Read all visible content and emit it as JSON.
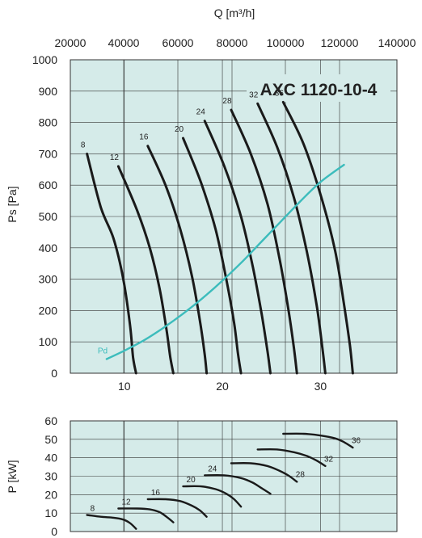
{
  "chart_data": [
    {
      "type": "line",
      "title": "AXC 1120-10-4",
      "top_axis": {
        "label": "Q [m³/h]",
        "ticks": [
          20000,
          40000,
          60000,
          80000,
          100000,
          120000,
          140000
        ],
        "tick_labels": [
          "20000",
          "40000",
          "60000",
          "80000",
          "100000",
          "120000",
          "140000"
        ]
      },
      "bottom_axis": {
        "label": "",
        "ticks": [
          10,
          20,
          30
        ],
        "tick_labels": [
          "10",
          "20",
          "30"
        ],
        "range": [
          4.5,
          37.8
        ]
      },
      "ylabel": "Ps [Pa]",
      "ylim": [
        0,
        1000
      ],
      "y_ticks": [
        0,
        100,
        200,
        300,
        400,
        500,
        600,
        700,
        800,
        900,
        1000
      ],
      "y_tick_labels": [
        "0",
        "100",
        "200",
        "300",
        "400",
        "500",
        "600",
        "700",
        "800",
        "900",
        "1000"
      ],
      "grid": true,
      "background": "#d5ebe9",
      "series": [
        {
          "name": "8",
          "color": "#1a1a1a",
          "points": [
            [
              6.2,
              700
            ],
            [
              7.6,
              530
            ],
            [
              8.9,
              430
            ],
            [
              9.9,
              300
            ],
            [
              10.6,
              150
            ],
            [
              10.9,
              50
            ],
            [
              11.2,
              0
            ]
          ]
        },
        {
          "name": "12",
          "color": "#1a1a1a",
          "points": [
            [
              9.4,
              660
            ],
            [
              11.3,
              520
            ],
            [
              12.6,
              400
            ],
            [
              13.6,
              270
            ],
            [
              14.3,
              140
            ],
            [
              14.7,
              50
            ],
            [
              15.0,
              0
            ]
          ]
        },
        {
          "name": "16",
          "color": "#1a1a1a",
          "points": [
            [
              12.4,
              725
            ],
            [
              14.2,
              600
            ],
            [
              15.7,
              460
            ],
            [
              16.9,
              310
            ],
            [
              17.7,
              170
            ],
            [
              18.2,
              60
            ],
            [
              18.4,
              0
            ]
          ]
        },
        {
          "name": "20",
          "color": "#1a1a1a",
          "points": [
            [
              16.0,
              750
            ],
            [
              17.8,
              610
            ],
            [
              19.3,
              460
            ],
            [
              20.4,
              300
            ],
            [
              21.2,
              160
            ],
            [
              21.6,
              60
            ],
            [
              21.9,
              0
            ]
          ]
        },
        {
          "name": "24",
          "color": "#1a1a1a",
          "points": [
            [
              18.2,
              805
            ],
            [
              20.2,
              660
            ],
            [
              21.9,
              500
            ],
            [
              23.1,
              340
            ],
            [
              24.0,
              190
            ],
            [
              24.6,
              70
            ],
            [
              24.9,
              0
            ]
          ]
        },
        {
          "name": "28",
          "color": "#1a1a1a",
          "points": [
            [
              20.9,
              840
            ],
            [
              22.9,
              700
            ],
            [
              24.6,
              540
            ],
            [
              25.8,
              370
            ],
            [
              26.7,
              210
            ],
            [
              27.3,
              80
            ],
            [
              27.6,
              0
            ]
          ]
        },
        {
          "name": "32",
          "color": "#1a1a1a",
          "points": [
            [
              23.6,
              860
            ],
            [
              25.6,
              720
            ],
            [
              27.3,
              560
            ],
            [
              28.6,
              390
            ],
            [
              29.6,
              220
            ],
            [
              30.2,
              80
            ],
            [
              30.5,
              0
            ]
          ]
        },
        {
          "name": "36",
          "color": "#1a1a1a",
          "points": [
            [
              26.2,
              865
            ],
            [
              28.3,
              730
            ],
            [
              30.1,
              560
            ],
            [
              31.5,
              390
            ],
            [
              32.4,
              220
            ],
            [
              33.0,
              90
            ],
            [
              33.3,
              0
            ]
          ]
        },
        {
          "name": "Pd",
          "color": "#3cbcbc",
          "points": [
            [
              8.2,
              45
            ],
            [
              10.2,
              75
            ],
            [
              12.0,
              105
            ],
            [
              14.0,
              145
            ],
            [
              16.0,
              190
            ],
            [
              18.0,
              240
            ],
            [
              20.0,
              295
            ],
            [
              22.0,
              355
            ],
            [
              24.0,
              420
            ],
            [
              26.0,
              485
            ],
            [
              28.0,
              550
            ],
            [
              30.0,
              610
            ],
            [
              32.4,
              665
            ]
          ]
        }
      ]
    },
    {
      "type": "line",
      "title": "",
      "xlabel": "",
      "ylabel": "P [kW]",
      "ylim": [
        0,
        60
      ],
      "y_ticks": [
        0,
        10,
        20,
        30,
        40,
        50,
        60
      ],
      "y_tick_labels": [
        "0",
        "10",
        "20",
        "30",
        "40",
        "50",
        "60"
      ],
      "xlim": [
        4.5,
        37.8
      ],
      "grid": true,
      "background": "#d5ebe9",
      "series": [
        {
          "name": "8",
          "color": "#1a1a1a",
          "points": [
            [
              6.2,
              9
            ],
            [
              7.6,
              8
            ],
            [
              8.9,
              7.5
            ],
            [
              9.9,
              6.5
            ],
            [
              10.6,
              4.5
            ],
            [
              11.2,
              1.5
            ]
          ]
        },
        {
          "name": "12",
          "color": "#1a1a1a",
          "points": [
            [
              9.4,
              12.5
            ],
            [
              11.3,
              12.5
            ],
            [
              12.6,
              12
            ],
            [
              13.6,
              10.5
            ],
            [
              14.3,
              8
            ],
            [
              15.0,
              5
            ]
          ]
        },
        {
          "name": "16",
          "color": "#1a1a1a",
          "points": [
            [
              12.4,
              17.5
            ],
            [
              14.2,
              17.5
            ],
            [
              15.7,
              16.5
            ],
            [
              16.9,
              14
            ],
            [
              17.7,
              11.5
            ],
            [
              18.4,
              8
            ]
          ]
        },
        {
          "name": "20",
          "color": "#1a1a1a",
          "points": [
            [
              16.0,
              24.5
            ],
            [
              17.8,
              24.5
            ],
            [
              19.3,
              23
            ],
            [
              20.4,
              20.5
            ],
            [
              21.2,
              17.5
            ],
            [
              21.9,
              13.5
            ]
          ]
        },
        {
          "name": "24",
          "color": "#1a1a1a",
          "points": [
            [
              18.2,
              30.5
            ],
            [
              20.2,
              30.5
            ],
            [
              21.9,
              29
            ],
            [
              23.1,
              26.5
            ],
            [
              24.0,
              23.5
            ],
            [
              24.9,
              20.5
            ]
          ]
        },
        {
          "name": "28",
          "color": "#1a1a1a",
          "points": [
            [
              20.9,
              37
            ],
            [
              22.9,
              37
            ],
            [
              24.6,
              35.5
            ],
            [
              25.8,
              33
            ],
            [
              26.7,
              30.5
            ],
            [
              27.6,
              27
            ]
          ]
        },
        {
          "name": "32",
          "color": "#1a1a1a",
          "points": [
            [
              23.6,
              44.5
            ],
            [
              25.6,
              44.5
            ],
            [
              27.3,
              43
            ],
            [
              28.6,
              41
            ],
            [
              29.6,
              38.5
            ],
            [
              30.5,
              35.5
            ]
          ]
        },
        {
          "name": "36",
          "color": "#1a1a1a",
          "points": [
            [
              26.2,
              53
            ],
            [
              28.3,
              53
            ],
            [
              30.1,
              52
            ],
            [
              31.5,
              50.5
            ],
            [
              32.4,
              48.5
            ],
            [
              33.3,
              45.5
            ]
          ]
        }
      ]
    }
  ]
}
